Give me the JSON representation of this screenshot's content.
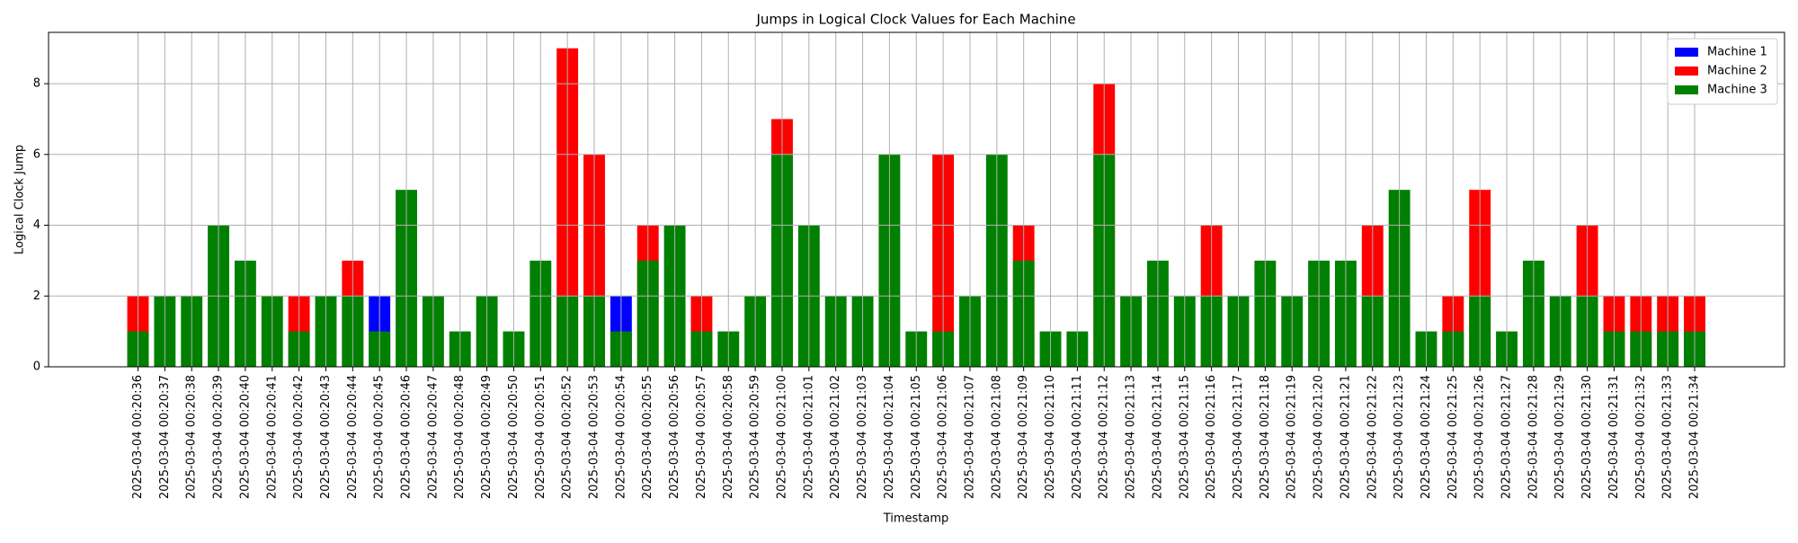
{
  "chart_data": {
    "type": "bar",
    "title": "Jumps in Logical Clock Values for Each Machine",
    "xlabel": "Timestamp",
    "ylabel": "Logical Clock Jump",
    "categories": [
      "2025-03-04 00:20:36",
      "2025-03-04 00:20:37",
      "2025-03-04 00:20:38",
      "2025-03-04 00:20:39",
      "2025-03-04 00:20:40",
      "2025-03-04 00:20:41",
      "2025-03-04 00:20:42",
      "2025-03-04 00:20:43",
      "2025-03-04 00:20:44",
      "2025-03-04 00:20:45",
      "2025-03-04 00:20:46",
      "2025-03-04 00:20:47",
      "2025-03-04 00:20:48",
      "2025-03-04 00:20:49",
      "2025-03-04 00:20:50",
      "2025-03-04 00:20:51",
      "2025-03-04 00:20:52",
      "2025-03-04 00:20:53",
      "2025-03-04 00:20:54",
      "2025-03-04 00:20:55",
      "2025-03-04 00:20:56",
      "2025-03-04 00:20:57",
      "2025-03-04 00:20:58",
      "2025-03-04 00:20:59",
      "2025-03-04 00:21:00",
      "2025-03-04 00:21:01",
      "2025-03-04 00:21:02",
      "2025-03-04 00:21:03",
      "2025-03-04 00:21:04",
      "2025-03-04 00:21:05",
      "2025-03-04 00:21:06",
      "2025-03-04 00:21:07",
      "2025-03-04 00:21:08",
      "2025-03-04 00:21:09",
      "2025-03-04 00:21:10",
      "2025-03-04 00:21:11",
      "2025-03-04 00:21:12",
      "2025-03-04 00:21:13",
      "2025-03-04 00:21:14",
      "2025-03-04 00:21:15",
      "2025-03-04 00:21:16",
      "2025-03-04 00:21:17",
      "2025-03-04 00:21:18",
      "2025-03-04 00:21:19",
      "2025-03-04 00:21:20",
      "2025-03-04 00:21:21",
      "2025-03-04 00:21:22",
      "2025-03-04 00:21:23",
      "2025-03-04 00:21:24",
      "2025-03-04 00:21:25",
      "2025-03-04 00:21:26",
      "2025-03-04 00:21:27",
      "2025-03-04 00:21:28",
      "2025-03-04 00:21:29",
      "2025-03-04 00:21:30",
      "2025-03-04 00:21:31",
      "2025-03-04 00:21:32",
      "2025-03-04 00:21:33",
      "2025-03-04 00:21:34"
    ],
    "series": [
      {
        "name": "Machine 1",
        "color": "#0000ff",
        "values": [
          0,
          0,
          0,
          0,
          0,
          0,
          0,
          0,
          0,
          2,
          0,
          0,
          0,
          0,
          0,
          0,
          0,
          0,
          2,
          0,
          0,
          0,
          0,
          0,
          0,
          0,
          0,
          0,
          0,
          0,
          0,
          0,
          0,
          0,
          0,
          0,
          0,
          0,
          0,
          0,
          0,
          0,
          0,
          0,
          0,
          0,
          0,
          0,
          0,
          0,
          0,
          0,
          0,
          0,
          0,
          0,
          0,
          0,
          0
        ]
      },
      {
        "name": "Machine 2",
        "color": "#ff0000",
        "values": [
          2,
          0,
          0,
          0,
          0,
          0,
          2,
          0,
          3,
          0,
          0,
          0,
          0,
          0,
          0,
          0,
          9,
          6,
          0,
          4,
          0,
          2,
          0,
          0,
          7,
          0,
          0,
          0,
          0,
          0,
          6,
          0,
          0,
          4,
          0,
          0,
          8,
          0,
          0,
          0,
          4,
          0,
          0,
          0,
          0,
          0,
          4,
          0,
          0,
          2,
          5,
          0,
          0,
          0,
          4,
          2,
          2,
          2,
          2
        ]
      },
      {
        "name": "Machine 3",
        "color": "#008000",
        "values": [
          1,
          2,
          2,
          4,
          3,
          2,
          1,
          2,
          2,
          1,
          5,
          2,
          1,
          2,
          1,
          3,
          2,
          2,
          1,
          3,
          4,
          1,
          1,
          2,
          6,
          4,
          2,
          2,
          6,
          1,
          1,
          2,
          6,
          3,
          1,
          1,
          6,
          2,
          3,
          2,
          2,
          2,
          3,
          2,
          3,
          3,
          2,
          5,
          1,
          1,
          2,
          1,
          3,
          2,
          2,
          1,
          1,
          1,
          1
        ]
      }
    ],
    "ylim": [
      0,
      9.45
    ],
    "yticks": [
      0,
      2,
      4,
      6,
      8
    ],
    "grid": true,
    "legend": "upper right"
  }
}
